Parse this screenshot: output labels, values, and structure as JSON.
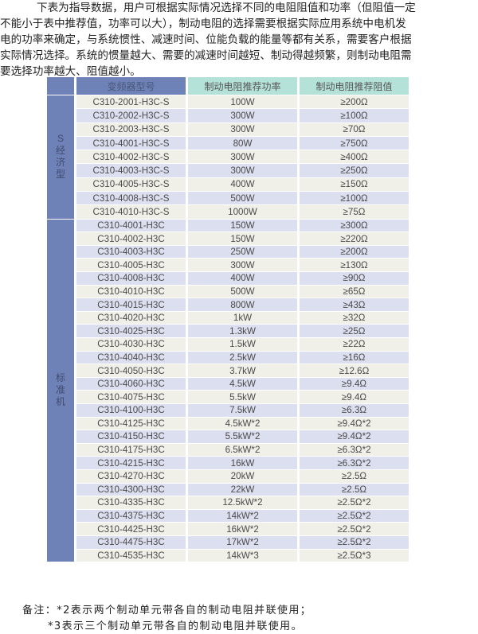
{
  "intro": {
    "lines": [
      "下表为指导数据，用户可根据实际情况选择不同的电阻阻值和功率（但阻值一定",
      "不能小于表中推荐值，功率可以大），制动电阻的选择需要根据实际应用系统中电机发",
      "电的功率来确定，与系统惯性、减速时间、位能负载的能量等都有关系，需要客户根据",
      "实际情况选择。系统的惯量越大、需要的减速时间越短、制动得越频繁，则制动电阻需",
      "要选择功率越大、阻值越小。"
    ]
  },
  "table": {
    "headers": [
      "",
      "变频器型号",
      "制动电阻推荐功率",
      "制动电阻推荐阻值"
    ],
    "groups": [
      {
        "label": "S\n经\n济\n型",
        "kind": "s",
        "rows": [
          [
            "C310-2001-H3C-S",
            "100W",
            "≥200Ω"
          ],
          [
            "C310-2002-H3C-S",
            "300W",
            "≥100Ω"
          ],
          [
            "C310-2003-H3C-S",
            "300W",
            "≥70Ω"
          ],
          [
            "C310-4001-H3C-S",
            "80W",
            "≥750Ω"
          ],
          [
            "C310-4002-H3C-S",
            "300W",
            "≥400Ω"
          ],
          [
            "C310-4003-H3C-S",
            "300W",
            "≥250Ω"
          ],
          [
            "C310-4005-H3C-S",
            "400W",
            "≥150Ω"
          ],
          [
            "C310-4008-H3C-S",
            "500W",
            "≥100Ω"
          ],
          [
            "C310-4010-H3C-S",
            "1000W",
            "≥75Ω"
          ]
        ]
      },
      {
        "label": "标\n准\n机",
        "kind": "n",
        "rows": [
          [
            "C310-4001-H3C",
            "150W",
            "≥300Ω"
          ],
          [
            "C310-4002-H3C",
            "150W",
            "≥220Ω"
          ],
          [
            "C310-4003-H3C",
            "250W",
            "≥200Ω"
          ],
          [
            "C310-4005-H3C",
            "300W",
            "≥130Ω"
          ],
          [
            "C310-4008-H3C",
            "400W",
            "≥90Ω"
          ],
          [
            "C310-4010-H3C",
            "500W",
            "≥65Ω"
          ],
          [
            "C310-4015-H3C",
            "800W",
            "≥43Ω"
          ],
          [
            "C310-4020-H3C",
            "1kW",
            "≥32Ω"
          ],
          [
            "C310-4025-H3C",
            "1.3kW",
            "≥25Ω"
          ],
          [
            "C310-4030-H3C",
            "1.5kW",
            "≥22Ω"
          ],
          [
            "C310-4040-H3C",
            "2.5kW",
            "≥16Ω"
          ],
          [
            "C310-4050-H3C",
            "3.7kW",
            "≥12.6Ω"
          ],
          [
            "C310-4060-H3C",
            "4.5kW",
            "≥9.4Ω"
          ],
          [
            "C310-4075-H3C",
            "5.5kW",
            "≥9.4Ω"
          ],
          [
            "C310-4100-H3C",
            "7.5kW",
            "≥6.3Ω"
          ],
          [
            "C310-4125-H3C",
            "4.5kW*2",
            "≥9.4Ω*2"
          ],
          [
            "C310-4150-H3C",
            "5.5kW*2",
            "≥9.4Ω*2"
          ],
          [
            "C310-4175-H3C",
            "6.5kW*2",
            "≥6.3Ω*2"
          ],
          [
            "C310-4215-H3C",
            "16kW",
            "≥6.3Ω*2"
          ],
          [
            "C310-4270-H3C",
            "20kW",
            "≥2.5Ω"
          ],
          [
            "C310-4300-H3C",
            "22kW",
            "≥2.5Ω"
          ],
          [
            "C310-4335-H3C",
            "12.5kW*2",
            "≥2.5Ω*2"
          ],
          [
            "C310-4375-H3C",
            "14kW*2",
            "≥2.5Ω*2"
          ],
          [
            "C310-4425-H3C",
            "16kW*2",
            "≥2.5Ω*2"
          ],
          [
            "C310-4475-H3C",
            "17kW*2",
            "≥2.5Ω*2"
          ],
          [
            "C310-4535-H3C",
            "14kW*3",
            "≥2.5Ω*3"
          ]
        ]
      }
    ],
    "colors": {
      "header_blue": "#6f82b8",
      "header_teal": "#b5e2d8",
      "row_light": "#f0f0e8",
      "row_lavender": "#dcdff0"
    }
  },
  "notes": {
    "line1": "备注：*2表示两个制动单元带各自的制动电阻并联使用；",
    "line2": "*3表示三个制动单元带各自的制动电阻并联使用。"
  }
}
